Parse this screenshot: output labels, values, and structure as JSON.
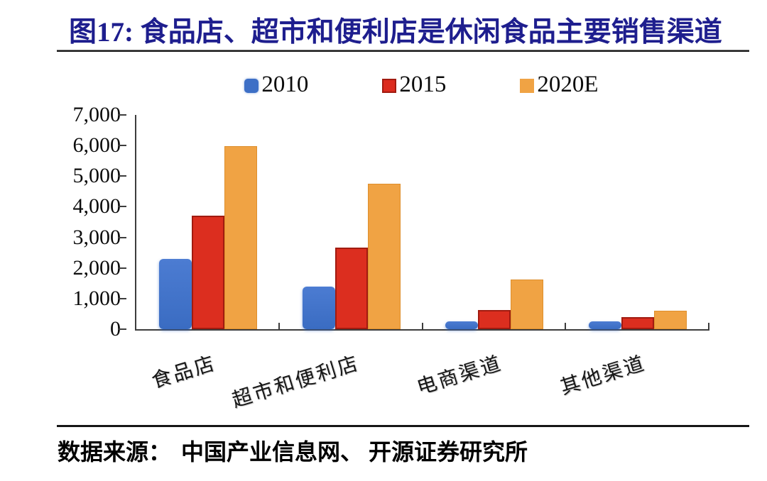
{
  "figure": {
    "title": "图17:  食品店、超市和便利店是休闲食品主要销售渠道",
    "source_label": "数据来源：",
    "source_text": "中国产业信息网、 开源证券研究所",
    "title_color": "#1e1e8e"
  },
  "chart_data": {
    "type": "bar",
    "title": "图17: 食品店、超市和便利店是休闲食品主要销售渠道",
    "categories": [
      "食品店",
      "超市和便利店",
      "电商渠道",
      "其他渠道"
    ],
    "series": [
      {
        "name": "2010",
        "color": "#3d6fc6",
        "values": [
          2300,
          1380,
          260,
          265
        ]
      },
      {
        "name": "2015",
        "color": "#dc2b1e",
        "border_color": "#a11b10",
        "values": [
          3700,
          2660,
          620,
          400
        ]
      },
      {
        "name": "2020E",
        "color": "#f0a344",
        "border_color": "#de8f2c",
        "values": [
          5970,
          4750,
          1620,
          610
        ]
      }
    ],
    "ylim": [
      0,
      7000
    ],
    "ytick_step": 1000,
    "ytick_labels": [
      "0",
      "1,000",
      "2,000",
      "3,000",
      "4,000",
      "5,000",
      "6,000",
      "7,000"
    ],
    "legend_position": "top-center",
    "grid": false,
    "axis_color": "#3d3d3d",
    "source": "数据来源： 中国产业信息网、 开源证券研究所"
  }
}
